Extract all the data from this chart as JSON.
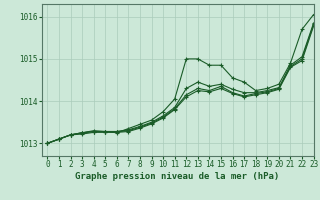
{
  "title": "Graphe pression niveau de la mer (hPa)",
  "background_color": "#cce8d8",
  "plot_background": "#cce8d8",
  "grid_color": "#aaccbb",
  "line_color": "#1a5c28",
  "xlim": [
    -0.5,
    23
  ],
  "ylim": [
    1012.7,
    1016.3
  ],
  "yticks": [
    1013,
    1014,
    1015,
    1016
  ],
  "xticks": [
    0,
    1,
    2,
    3,
    4,
    5,
    6,
    7,
    8,
    9,
    10,
    11,
    12,
    13,
    14,
    15,
    16,
    17,
    18,
    19,
    20,
    21,
    22,
    23
  ],
  "series": [
    [
      1013.0,
      1013.1,
      1013.2,
      1013.25,
      1013.3,
      1013.28,
      1013.25,
      1013.35,
      1013.45,
      1013.55,
      1013.75,
      1014.05,
      1015.0,
      1015.0,
      1014.85,
      1014.85,
      1014.55,
      1014.45,
      1014.25,
      1014.3,
      1014.4,
      1014.9,
      1015.7,
      1016.05
    ],
    [
      1013.0,
      1013.1,
      1013.2,
      1013.25,
      1013.28,
      1013.28,
      1013.28,
      1013.32,
      1013.4,
      1013.5,
      1013.65,
      1013.85,
      1014.3,
      1014.45,
      1014.35,
      1014.4,
      1014.28,
      1014.2,
      1014.2,
      1014.25,
      1014.32,
      1014.85,
      1015.05,
      1015.85
    ],
    [
      1013.0,
      1013.1,
      1013.2,
      1013.25,
      1013.28,
      1013.28,
      1013.28,
      1013.3,
      1013.38,
      1013.48,
      1013.62,
      1013.82,
      1014.15,
      1014.3,
      1014.25,
      1014.35,
      1014.2,
      1014.12,
      1014.18,
      1014.22,
      1014.3,
      1014.82,
      1015.0,
      1015.82
    ],
    [
      1013.0,
      1013.1,
      1013.2,
      1013.22,
      1013.26,
      1013.26,
      1013.26,
      1013.28,
      1013.36,
      1013.46,
      1013.6,
      1013.8,
      1014.1,
      1014.25,
      1014.22,
      1014.3,
      1014.18,
      1014.1,
      1014.15,
      1014.2,
      1014.28,
      1014.8,
      1014.96,
      1015.78
    ]
  ],
  "marker": "+",
  "marker_size": 3,
  "linewidth": 0.8,
  "tick_fontsize": 5.5,
  "xlabel_fontsize": 6.5
}
